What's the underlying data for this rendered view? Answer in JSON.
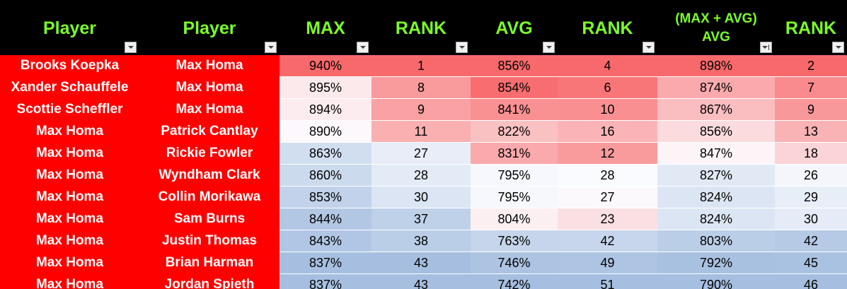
{
  "headers": {
    "player1": "Player",
    "player2": "Player",
    "max": "MAX",
    "max_rank": "RANK",
    "avg": "AVG",
    "avg_rank": "RANK",
    "combo_line1": "(MAX + AVG)",
    "combo_line2": "AVG",
    "combo_rank": "RANK"
  },
  "colors": {
    "header_bg": "#000000",
    "header_text": "#7CFC2A",
    "player_bg": "#ff0000",
    "player_text": "#ffffff",
    "scale_high": "#f8696b",
    "scale_mid": "#fcfcff",
    "scale_low": "#a6bfe0"
  },
  "rows": [
    {
      "p1": "Brooks Koepka",
      "p2": "Max Homa",
      "max": "940%",
      "max_rank": "1",
      "avg": "856%",
      "avg_rank": "4",
      "combo": "898%",
      "combo_rank": "2"
    },
    {
      "p1": "Xander Schauffele",
      "p2": "Max Homa",
      "max": "895%",
      "max_rank": "8",
      "avg": "854%",
      "avg_rank": "6",
      "combo": "874%",
      "combo_rank": "7"
    },
    {
      "p1": "Scottie Scheffler",
      "p2": "Max Homa",
      "max": "894%",
      "max_rank": "9",
      "avg": "841%",
      "avg_rank": "10",
      "combo": "867%",
      "combo_rank": "9"
    },
    {
      "p1": "Max Homa",
      "p2": "Patrick Cantlay",
      "max": "890%",
      "max_rank": "11",
      "avg": "822%",
      "avg_rank": "16",
      "combo": "856%",
      "combo_rank": "13"
    },
    {
      "p1": "Max Homa",
      "p2": "Rickie Fowler",
      "max": "863%",
      "max_rank": "27",
      "avg": "831%",
      "avg_rank": "12",
      "combo": "847%",
      "combo_rank": "18"
    },
    {
      "p1": "Max Homa",
      "p2": "Wyndham Clark",
      "max": "860%",
      "max_rank": "28",
      "avg": "795%",
      "avg_rank": "28",
      "combo": "827%",
      "combo_rank": "26"
    },
    {
      "p1": "Max Homa",
      "p2": "Collin Morikawa",
      "max": "853%",
      "max_rank": "30",
      "avg": "795%",
      "avg_rank": "27",
      "combo": "824%",
      "combo_rank": "29"
    },
    {
      "p1": "Max Homa",
      "p2": "Sam Burns",
      "max": "844%",
      "max_rank": "37",
      "avg": "804%",
      "avg_rank": "23",
      "combo": "824%",
      "combo_rank": "30"
    },
    {
      "p1": "Max Homa",
      "p2": "Justin Thomas",
      "max": "843%",
      "max_rank": "38",
      "avg": "763%",
      "avg_rank": "42",
      "combo": "803%",
      "combo_rank": "42"
    },
    {
      "p1": "Max Homa",
      "p2": "Brian Harman",
      "max": "837%",
      "max_rank": "43",
      "avg": "746%",
      "avg_rank": "49",
      "combo": "792%",
      "combo_rank": "45"
    },
    {
      "p1": "Max Homa",
      "p2": "Jordan Spieth",
      "max": "837%",
      "max_rank": "43",
      "avg": "742%",
      "avg_rank": "51",
      "combo": "790%",
      "combo_rank": "46"
    }
  ]
}
